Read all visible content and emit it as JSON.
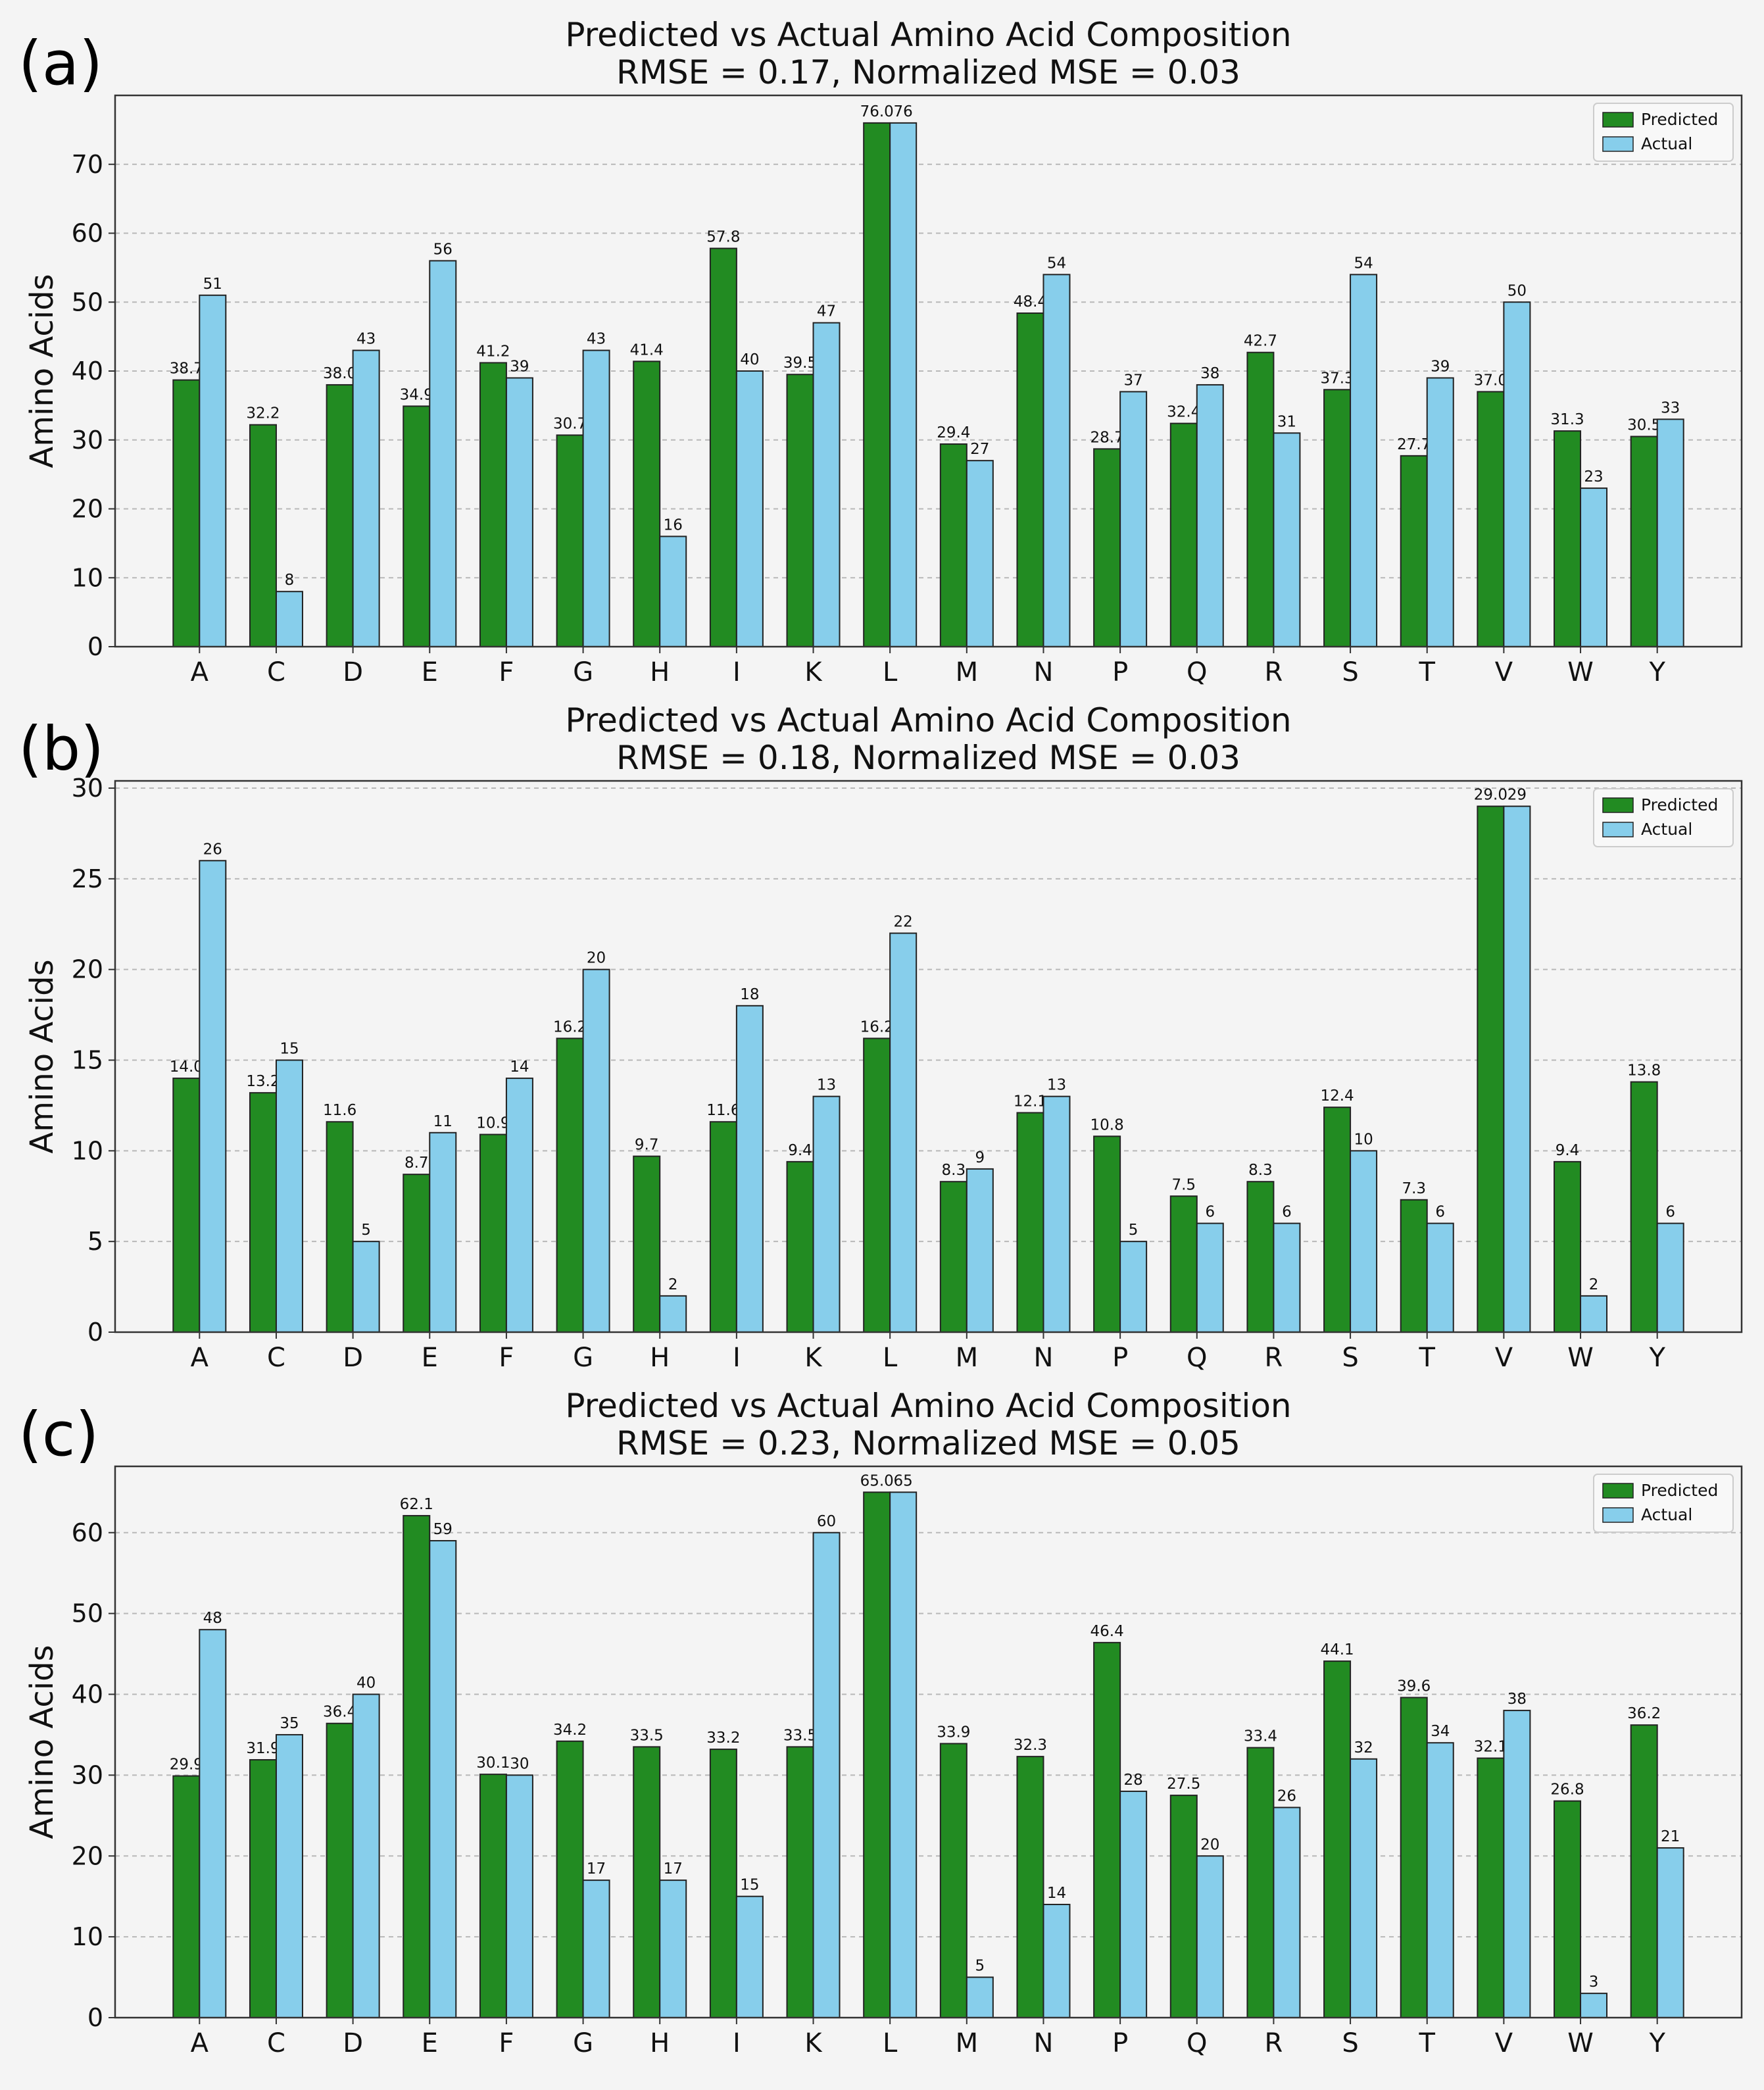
{
  "colors": {
    "predicted": "#228B22",
    "actual": "#87CEEB",
    "grid": "#b8b8b8",
    "edge": "#222222"
  },
  "chart_data": [
    {
      "panel_letter": "(a)",
      "type": "bar",
      "title": "Predicted vs Actual Amino Acid Composition",
      "subtitle": "RMSE = 0.17, Normalized MSE = 0.03",
      "xlabel": "",
      "ylabel": "Amino Acids",
      "ylim": [
        0,
        80
      ],
      "yticks": [
        0,
        10,
        20,
        30,
        40,
        50,
        60,
        70
      ],
      "grid": true,
      "legend": "top-right",
      "categories": [
        "A",
        "C",
        "D",
        "E",
        "F",
        "G",
        "H",
        "I",
        "K",
        "L",
        "M",
        "N",
        "P",
        "Q",
        "R",
        "S",
        "T",
        "V",
        "W",
        "Y"
      ],
      "series": [
        {
          "name": "Predicted",
          "values": [
            38.7,
            32.2,
            38.0,
            34.9,
            41.2,
            30.7,
            41.4,
            57.8,
            39.5,
            76.0,
            29.4,
            48.4,
            28.7,
            32.4,
            42.7,
            37.3,
            27.7,
            37.0,
            31.3,
            30.5
          ],
          "labels": [
            "38.7",
            "32.2",
            "38.0",
            "34.9",
            "41.2",
            "30.7",
            "41.4",
            "57.8",
            "39.5",
            "76.0",
            "29.4",
            "48.4",
            "28.7",
            "32.4",
            "42.7",
            "37.3",
            "27.7",
            "37.0",
            "31.3",
            "30.5"
          ]
        },
        {
          "name": "Actual",
          "values": [
            51,
            8,
            43,
            56,
            39,
            43,
            16,
            40,
            47,
            76,
            27,
            54,
            37,
            38,
            31,
            54,
            39,
            50,
            23,
            33
          ],
          "labels": [
            "51",
            "8",
            "43",
            "56",
            "39",
            "43",
            "16",
            "40",
            "47",
            "76",
            "27",
            "54",
            "37",
            "38",
            "31",
            "54",
            "39",
            "50",
            "23",
            "33"
          ]
        }
      ]
    },
    {
      "panel_letter": "(b)",
      "type": "bar",
      "title": "Predicted vs Actual Amino Acid Composition",
      "subtitle": "RMSE = 0.18, Normalized MSE = 0.03",
      "xlabel": "",
      "ylabel": "Amino Acids",
      "ylim": [
        0,
        30.4
      ],
      "yticks": [
        0,
        5,
        10,
        15,
        20,
        25,
        30
      ],
      "grid": true,
      "legend": "top-right",
      "categories": [
        "A",
        "C",
        "D",
        "E",
        "F",
        "G",
        "H",
        "I",
        "K",
        "L",
        "M",
        "N",
        "P",
        "Q",
        "R",
        "S",
        "T",
        "V",
        "W",
        "Y"
      ],
      "series": [
        {
          "name": "Predicted",
          "values": [
            14.0,
            13.2,
            11.6,
            8.7,
            10.9,
            16.2,
            9.7,
            11.6,
            9.4,
            16.2,
            8.3,
            12.1,
            10.8,
            7.5,
            8.3,
            12.4,
            7.3,
            29.0,
            9.4,
            13.8
          ],
          "labels": [
            "14.0",
            "13.2",
            "11.6",
            "8.7",
            "10.9",
            "16.2",
            "9.7",
            "11.6",
            "9.4",
            "16.2",
            "8.3",
            "12.1",
            "10.8",
            "7.5",
            "8.3",
            "12.4",
            "7.3",
            "29.0",
            "9.4",
            "13.8"
          ]
        },
        {
          "name": "Actual",
          "values": [
            26,
            15,
            5,
            11,
            14,
            20,
            2,
            18,
            13,
            22,
            9,
            13,
            5,
            6,
            6,
            10,
            6,
            29,
            2,
            6
          ],
          "labels": [
            "26",
            "15",
            "5",
            "11",
            "14",
            "20",
            "2",
            "18",
            "13",
            "22",
            "9",
            "13",
            "5",
            "6",
            "6",
            "10",
            "6",
            "29",
            "2",
            "6"
          ]
        }
      ]
    },
    {
      "panel_letter": "(c)",
      "type": "bar",
      "title": "Predicted vs Actual Amino Acid Composition",
      "subtitle": "RMSE = 0.23, Normalized MSE = 0.05",
      "xlabel": "",
      "ylabel": "Amino Acids",
      "ylim": [
        0,
        68.2
      ],
      "yticks": [
        0,
        10,
        20,
        30,
        40,
        50,
        60
      ],
      "grid": true,
      "legend": "top-right",
      "categories": [
        "A",
        "C",
        "D",
        "E",
        "F",
        "G",
        "H",
        "I",
        "K",
        "L",
        "M",
        "N",
        "P",
        "Q",
        "R",
        "S",
        "T",
        "V",
        "W",
        "Y"
      ],
      "series": [
        {
          "name": "Predicted",
          "values": [
            29.9,
            31.9,
            36.4,
            62.1,
            30.1,
            34.2,
            33.5,
            33.2,
            33.5,
            65.0,
            33.9,
            32.3,
            46.4,
            27.5,
            33.4,
            44.1,
            39.6,
            32.1,
            26.8,
            36.2
          ],
          "labels": [
            "29.9",
            "31.9",
            "36.4",
            "62.1",
            "30.1",
            "34.2",
            "33.5",
            "33.2",
            "33.5",
            "65.0",
            "33.9",
            "32.3",
            "46.4",
            "27.5",
            "33.4",
            "44.1",
            "39.6",
            "32.1",
            "26.8",
            "36.2"
          ]
        },
        {
          "name": "Actual",
          "values": [
            48,
            35,
            40,
            59,
            30,
            17,
            17,
            15,
            60,
            65,
            5,
            14,
            28,
            20,
            26,
            32,
            34,
            38,
            3,
            21
          ],
          "labels": [
            "48",
            "35",
            "40",
            "59",
            "30",
            "17",
            "17",
            "15",
            "60",
            "65",
            "5",
            "14",
            "28",
            "20",
            "26",
            "32",
            "34",
            "38",
            "3",
            "21"
          ]
        }
      ]
    }
  ]
}
